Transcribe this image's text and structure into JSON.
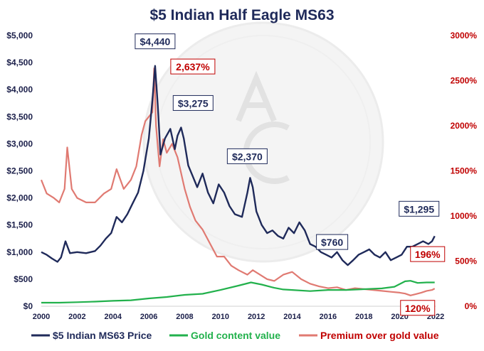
{
  "chart_data": {
    "type": "line",
    "title": "$5 Indian Half Eagle MS63",
    "xlim": [
      2000,
      2022
    ],
    "ylim_left": [
      0,
      5000
    ],
    "ylim_right": [
      0,
      3000
    ],
    "x_ticks": [
      "2000",
      "2002",
      "2004",
      "2006",
      "2008",
      "2010",
      "2012",
      "2014",
      "2016",
      "2018",
      "2020",
      "2022"
    ],
    "y_ticks_left": [
      "$0",
      "$500",
      "$1,000",
      "$1,500",
      "$2,000",
      "$2,500",
      "$3,000",
      "$3,500",
      "$4,000",
      "$4,500",
      "$5,000"
    ],
    "y_ticks_right": [
      "0%",
      "500%",
      "1000%",
      "1500%",
      "2000%",
      "2500%",
      "3000%"
    ],
    "grid": false,
    "legend_position": "bottom",
    "colors": {
      "price": "#1f2a5a",
      "gold": "#22b14c",
      "premium": "#e07a72",
      "title": "#1f2a5a",
      "right_axis": "#c00000"
    },
    "series": [
      {
        "name": "$5 Indian MS63 Price",
        "axis": "left",
        "x": [
          2000,
          2000.3,
          2000.6,
          2000.9,
          2001.1,
          2001.35,
          2001.6,
          2002.0,
          2002.5,
          2003.0,
          2003.3,
          2003.6,
          2003.9,
          2004.2,
          2004.5,
          2004.8,
          2005.1,
          2005.4,
          2005.7,
          2006.0,
          2006.2,
          2006.35,
          2006.5,
          2006.65,
          2006.9,
          2007.2,
          2007.45,
          2007.6,
          2007.8,
          2007.95,
          2008.2,
          2008.45,
          2008.7,
          2009.0,
          2009.3,
          2009.6,
          2009.9,
          2010.2,
          2010.5,
          2010.8,
          2011.2,
          2011.5,
          2011.65,
          2011.8,
          2012.0,
          2012.3,
          2012.6,
          2012.9,
          2013.2,
          2013.5,
          2013.8,
          2014.1,
          2014.4,
          2014.7,
          2015.0,
          2015.3,
          2015.6,
          2015.9,
          2016.2,
          2016.5,
          2016.8,
          2017.1,
          2017.4,
          2017.7,
          2018.0,
          2018.3,
          2018.6,
          2018.9,
          2019.2,
          2019.5,
          2019.8,
          2020.1,
          2020.4,
          2020.7,
          2021.0,
          2021.3,
          2021.6,
          2021.8,
          2021.95
        ],
        "values": [
          1000,
          950,
          880,
          820,
          900,
          1200,
          980,
          1000,
          980,
          1020,
          1120,
          1250,
          1350,
          1650,
          1550,
          1700,
          1900,
          2100,
          2500,
          3100,
          3800,
          4440,
          3700,
          2800,
          3100,
          3275,
          2900,
          3150,
          3300,
          3100,
          2600,
          2400,
          2200,
          2450,
          2100,
          1900,
          2250,
          2100,
          1850,
          1700,
          1650,
          2100,
          2370,
          2200,
          1750,
          1500,
          1350,
          1400,
          1300,
          1250,
          1450,
          1350,
          1550,
          1400,
          1150,
          1100,
          1000,
          950,
          900,
          1000,
          850,
          760,
          850,
          950,
          1000,
          1050,
          950,
          900,
          1000,
          850,
          900,
          950,
          1100,
          1100,
          1150,
          1200,
          1150,
          1200,
          1295
        ]
      },
      {
        "name": "Gold content value",
        "axis": "left",
        "x": [
          2000,
          2001,
          2002,
          2003,
          2004,
          2005,
          2006,
          2007,
          2008,
          2009,
          2010,
          2011,
          2011.7,
          2012.3,
          2013,
          2013.5,
          2014,
          2015,
          2016,
          2017,
          2018,
          2019,
          2019.7,
          2020.3,
          2020.6,
          2021,
          2021.5,
          2021.95
        ],
        "values": [
          65,
          65,
          75,
          85,
          100,
          110,
          145,
          170,
          210,
          230,
          300,
          380,
          440,
          400,
          340,
          310,
          300,
          280,
          300,
          300,
          315,
          330,
          360,
          460,
          470,
          430,
          440,
          440
        ]
      },
      {
        "name": "Premium over gold value",
        "axis": "right",
        "x": [
          2000,
          2000.3,
          2000.7,
          2001.0,
          2001.3,
          2001.45,
          2001.7,
          2002.0,
          2002.5,
          2003.0,
          2003.5,
          2003.9,
          2004.2,
          2004.6,
          2005.0,
          2005.3,
          2005.6,
          2005.8,
          2006.0,
          2006.2,
          2006.3,
          2006.4,
          2006.6,
          2006.8,
          2007.0,
          2007.3,
          2007.6,
          2008.0,
          2008.3,
          2008.6,
          2009.0,
          2009.4,
          2009.8,
          2010.2,
          2010.6,
          2011.0,
          2011.5,
          2011.8,
          2012.2,
          2012.6,
          2013.0,
          2013.5,
          2014.0,
          2014.5,
          2015.0,
          2015.5,
          2016.0,
          2016.5,
          2017.0,
          2017.5,
          2018.0,
          2018.5,
          2019.0,
          2019.5,
          2020.0,
          2020.3,
          2020.6,
          2020.9,
          2021.2,
          2021.5,
          2021.8,
          2021.95
        ],
        "values": [
          1400,
          1250,
          1200,
          1150,
          1300,
          1760,
          1300,
          1200,
          1150,
          1150,
          1250,
          1300,
          1520,
          1300,
          1400,
          1550,
          1900,
          2050,
          2100,
          2150,
          2637,
          2000,
          1550,
          1850,
          1700,
          1800,
          1650,
          1300,
          1100,
          950,
          850,
          700,
          550,
          550,
          450,
          400,
          350,
          400,
          350,
          300,
          280,
          350,
          380,
          300,
          250,
          220,
          200,
          210,
          180,
          200,
          190,
          180,
          170,
          160,
          150,
          140,
          120,
          135,
          150,
          170,
          180,
          196
        ]
      }
    ],
    "annotations": [
      {
        "text": "$4,440",
        "x": 2006.35,
        "y": 4440,
        "axis": "left",
        "color": "#1f2a5a"
      },
      {
        "text": "2,637%",
        "x": 2006.35,
        "y": 2637,
        "axis": "right",
        "color": "#c00000"
      },
      {
        "text": "$3,275",
        "x": 2007.2,
        "y": 3275,
        "axis": "left",
        "color": "#1f2a5a"
      },
      {
        "text": "$2,370",
        "x": 2011.65,
        "y": 2370,
        "axis": "left",
        "color": "#1f2a5a"
      },
      {
        "text": "$1,295",
        "x": 2021.95,
        "y": 1295,
        "axis": "left",
        "color": "#1f2a5a"
      },
      {
        "text": "$760",
        "x": 2017.1,
        "y": 760,
        "axis": "left",
        "color": "#1f2a5a"
      },
      {
        "text": "196%",
        "x": 2021.95,
        "y": 196,
        "axis": "right",
        "color": "#c00000"
      },
      {
        "text": "120%",
        "x": 2020.6,
        "y": 120,
        "axis": "right",
        "color": "#c00000"
      }
    ]
  }
}
